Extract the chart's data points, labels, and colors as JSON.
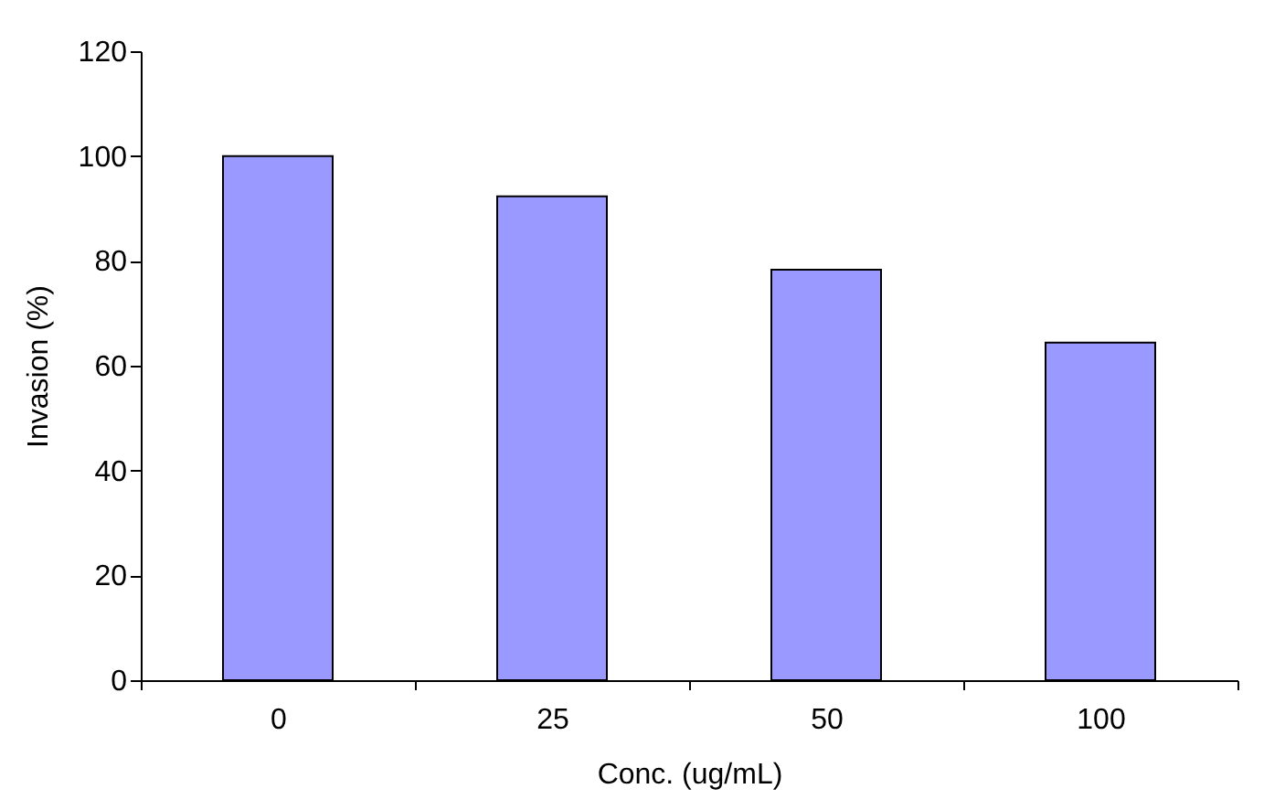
{
  "chart_data": {
    "type": "bar",
    "xlabel": "Conc. (ug/mL)",
    "ylabel": "Invasion (%)",
    "categories": [
      "0",
      "25",
      "50",
      "100"
    ],
    "values": [
      100,
      92.3,
      78.3,
      64.4
    ],
    "color": "#9999ff",
    "ylim": [
      0,
      120
    ],
    "yticks": [
      0,
      20,
      40,
      60,
      80,
      100,
      120
    ],
    "grid": false,
    "legend": false
  }
}
